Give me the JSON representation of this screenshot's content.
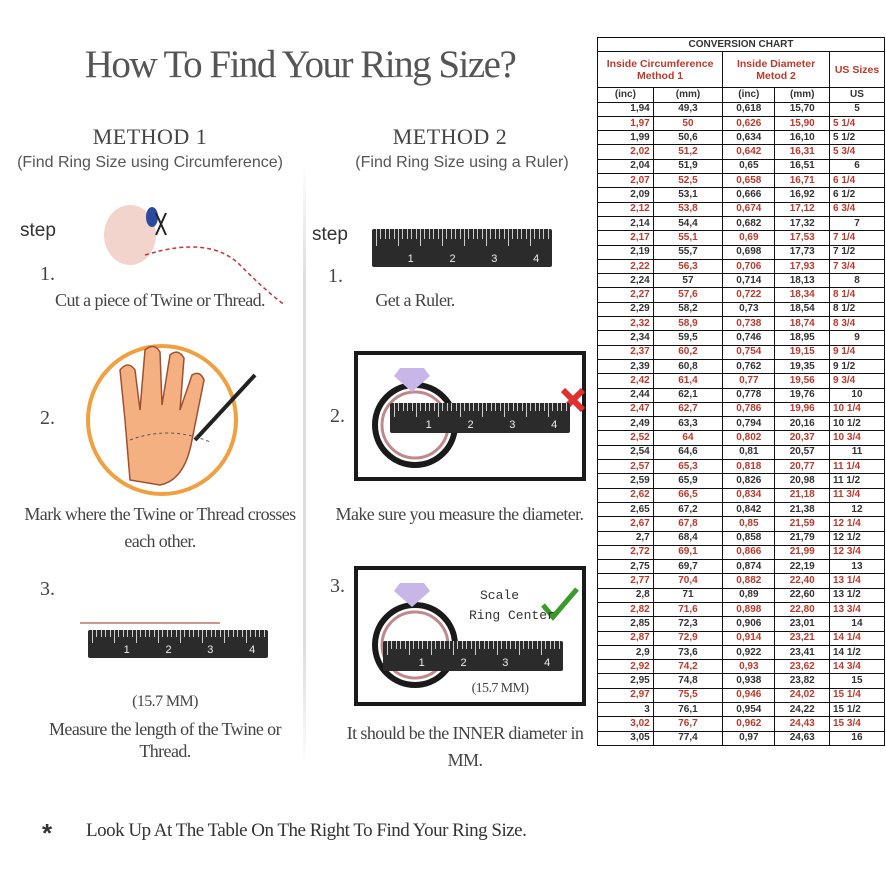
{
  "title": "How To Find Your Ring Size?",
  "method1": {
    "heading": "METHOD 1",
    "sub": "(Find Ring Size using Circumference)",
    "step_label": "step",
    "steps": [
      {
        "num": "1.",
        "caption": "Cut a piece of Twine or Thread."
      },
      {
        "num": "2.",
        "caption": "Mark where the Twine or Thread crosses each other."
      },
      {
        "num": "3.",
        "measure": "(15.7 MM)",
        "caption": "Measure the length of the Twine or Thread."
      }
    ]
  },
  "method2": {
    "heading": "METHOD 2",
    "sub": "(Find Ring Size using a Ruler)",
    "step_label": "step",
    "steps": [
      {
        "num": "1.",
        "caption": "Get a Ruler."
      },
      {
        "num": "2.",
        "caption": "Make sure you measure the diameter."
      },
      {
        "num": "3.",
        "scale_label": "Scale",
        "center_label": "Ring Center",
        "measure": "(15.7 MM)",
        "caption": "It should be the INNER diameter in MM."
      }
    ]
  },
  "ruler_numbers": [
    "1",
    "2",
    "3",
    "4"
  ],
  "footnote": {
    "symbol": "*",
    "text": "Look Up At The Table On The Right To Find Your Ring Size."
  },
  "colors": {
    "accent_red": "#c0392b",
    "check_green": "#3a9a2a",
    "cross_red": "#e03030",
    "circle_orange": "#f0a040"
  },
  "table": {
    "title": "CONVERSION CHART",
    "group_headers": [
      "Inside Circumference Method 1",
      "Inside Diameter Metod 2",
      "US Sizes"
    ],
    "units": [
      "(inc)",
      "(mm)",
      "(inc)",
      "(mm)",
      "US"
    ],
    "rows": [
      [
        "1,94",
        "49,3",
        "0,618",
        "15,70",
        "5"
      ],
      [
        "1,97",
        "50",
        "0,626",
        "15,90",
        "5 1/4"
      ],
      [
        "1,99",
        "50,6",
        "0,634",
        "16,10",
        "5 1/2"
      ],
      [
        "2,02",
        "51,2",
        "0,642",
        "16,31",
        "5 3/4"
      ],
      [
        "2,04",
        "51,9",
        "0,65",
        "16,51",
        "6"
      ],
      [
        "2,07",
        "52,5",
        "0,658",
        "16,71",
        "6 1/4"
      ],
      [
        "2,09",
        "53,1",
        "0,666",
        "16,92",
        "6 1/2"
      ],
      [
        "2,12",
        "53,8",
        "0,674",
        "17,12",
        "6 3/4"
      ],
      [
        "2,14",
        "54,4",
        "0,682",
        "17,32",
        "7"
      ],
      [
        "2,17",
        "55,1",
        "0,69",
        "17,53",
        "7 1/4"
      ],
      [
        "2,19",
        "55,7",
        "0,698",
        "17,73",
        "7 1/2"
      ],
      [
        "2,22",
        "56,3",
        "0,706",
        "17,93",
        "7 3/4"
      ],
      [
        "2,24",
        "57",
        "0,714",
        "18,13",
        "8"
      ],
      [
        "2,27",
        "57,6",
        "0,722",
        "18,34",
        "8 1/4"
      ],
      [
        "2,29",
        "58,2",
        "0,73",
        "18,54",
        "8 1/2"
      ],
      [
        "2,32",
        "58,9",
        "0,738",
        "18,74",
        "8 3/4"
      ],
      [
        "2,34",
        "59,5",
        "0,746",
        "18,95",
        "9"
      ],
      [
        "2,37",
        "60,2",
        "0,754",
        "19,15",
        "9 1/4"
      ],
      [
        "2,39",
        "60,8",
        "0,762",
        "19,35",
        "9 1/2"
      ],
      [
        "2,42",
        "61,4",
        "0,77",
        "19,56",
        "9 3/4"
      ],
      [
        "2,44",
        "62,1",
        "0,778",
        "19,76",
        "10"
      ],
      [
        "2,47",
        "62,7",
        "0,786",
        "19,96",
        "10 1/4"
      ],
      [
        "2,49",
        "63,3",
        "0,794",
        "20,16",
        "10 1/2"
      ],
      [
        "2,52",
        "64",
        "0,802",
        "20,37",
        "10 3/4"
      ],
      [
        "2,54",
        "64,6",
        "0,81",
        "20,57",
        "11"
      ],
      [
        "2,57",
        "65,3",
        "0,818",
        "20,77",
        "11 1/4"
      ],
      [
        "2,59",
        "65,9",
        "0,826",
        "20,98",
        "11 1/2"
      ],
      [
        "2,62",
        "66,5",
        "0,834",
        "21,18",
        "11 3/4"
      ],
      [
        "2,65",
        "67,2",
        "0,842",
        "21,38",
        "12"
      ],
      [
        "2,67",
        "67,8",
        "0,85",
        "21,59",
        "12 1/4"
      ],
      [
        "2,7",
        "68,4",
        "0,858",
        "21,79",
        "12 1/2"
      ],
      [
        "2,72",
        "69,1",
        "0,866",
        "21,99",
        "12 3/4"
      ],
      [
        "2,75",
        "69,7",
        "0,874",
        "22,19",
        "13"
      ],
      [
        "2,77",
        "70,4",
        "0,882",
        "22,40",
        "13 1/4"
      ],
      [
        "2,8",
        "71",
        "0,89",
        "22,60",
        "13 1/2"
      ],
      [
        "2,82",
        "71,6",
        "0,898",
        "22,80",
        "13 3/4"
      ],
      [
        "2,85",
        "72,3",
        "0,906",
        "23,01",
        "14"
      ],
      [
        "2,87",
        "72,9",
        "0,914",
        "23,21",
        "14 1/4"
      ],
      [
        "2,9",
        "73,6",
        "0,922",
        "23,41",
        "14 1/2"
      ],
      [
        "2,92",
        "74,2",
        "0,93",
        "23,62",
        "14 3/4"
      ],
      [
        "2,95",
        "74,8",
        "0,938",
        "23,82",
        "15"
      ],
      [
        "2,97",
        "75,5",
        "0,946",
        "24,02",
        "15 1/4"
      ],
      [
        "3",
        "76,1",
        "0,954",
        "24,22",
        "15 1/2"
      ],
      [
        "3,02",
        "76,7",
        "0,962",
        "24,43",
        "15 3/4"
      ],
      [
        "3,05",
        "77,4",
        "0,97",
        "24,63",
        "16"
      ]
    ]
  }
}
